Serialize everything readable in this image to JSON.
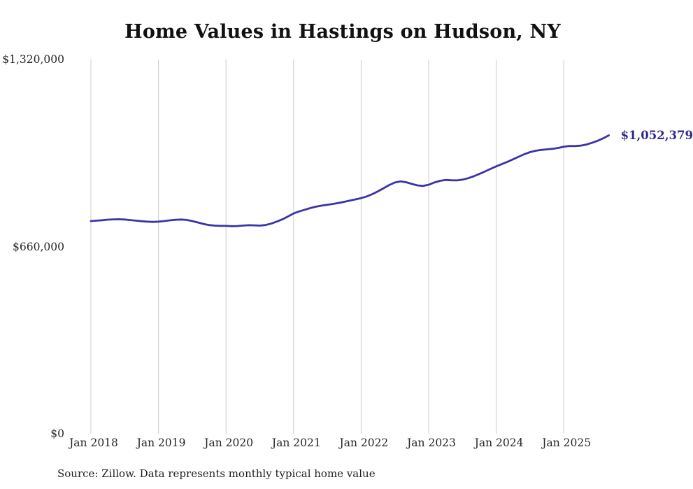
{
  "chart": {
    "title": "Home Values in Hastings on Hudson, NY",
    "end_label": "$1,052,379",
    "source": "Source: Zillow. Data represents monthly typical home value"
  },
  "chart_data": {
    "type": "line",
    "title": "Home Values in Hastings on Hudson, NY",
    "xlabel": "",
    "ylabel": "",
    "x_start_month": "Jan 2018",
    "x_end_month": "Sep 2025",
    "x_tick_labels": [
      "Jan 2018",
      "Jan 2019",
      "Jan 2020",
      "Jan 2021",
      "Jan 2022",
      "Jan 2023",
      "Jan 2024",
      "Jan 2025"
    ],
    "y_ticks": [
      {
        "label": "$0",
        "value": 0
      },
      {
        "label": "$660,000",
        "value": 660000
      },
      {
        "label": "$1,320,000",
        "value": 1320000
      }
    ],
    "ylim": [
      0,
      1320000
    ],
    "grid": "vertical-only",
    "legend": "none",
    "line_color": "#3b34a6",
    "grid_color": "#cccccc",
    "end_label_color": "#2f2a8c",
    "final_value": 1052379,
    "final_value_label": "$1,052,379",
    "values": [
      750000,
      751500,
      753000,
      755000,
      756000,
      756500,
      755500,
      753500,
      751500,
      749500,
      748000,
      747000,
      748000,
      750000,
      752500,
      754500,
      755500,
      754000,
      750000,
      745000,
      740000,
      736000,
      734000,
      733000,
      733000,
      732000,
      732500,
      734000,
      735500,
      735000,
      734000,
      736000,
      741000,
      748000,
      756000,
      766000,
      777000,
      784000,
      790000,
      796000,
      801000,
      804500,
      807500,
      810500,
      814000,
      818000,
      822000,
      826500,
      831000,
      837000,
      845000,
      855000,
      866000,
      877000,
      886000,
      890000,
      887000,
      881000,
      876000,
      874000,
      878000,
      886000,
      892000,
      895000,
      894000,
      893500,
      896000,
      901000,
      908000,
      916000,
      925000,
      934000,
      943000,
      951000,
      959000,
      968000,
      977000,
      986000,
      993000,
      998000,
      1001000,
      1003000,
      1005000,
      1008000,
      1012000,
      1015000,
      1014500,
      1016000,
      1020000,
      1026000,
      1033000,
      1042000,
      1052379
    ]
  }
}
